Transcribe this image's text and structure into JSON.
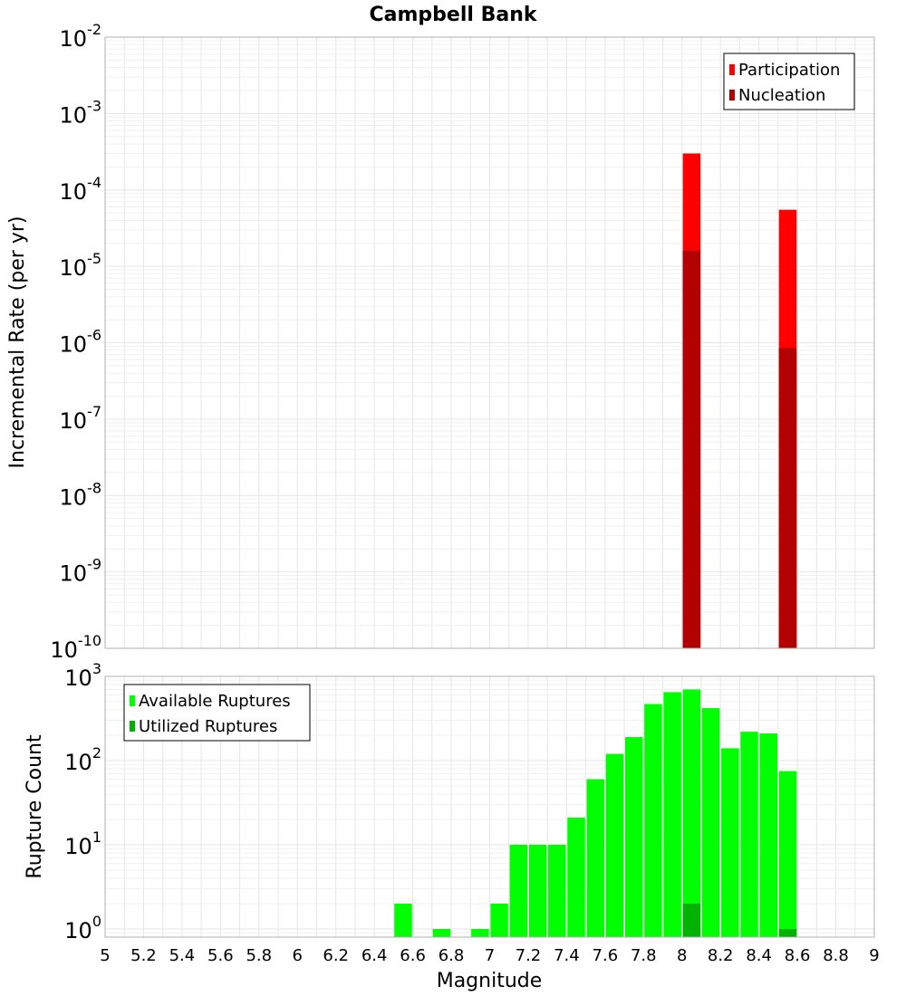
{
  "title": "Campbell Bank",
  "chart_data": [
    {
      "type": "bar",
      "panel": "rates",
      "ylabel": "Incremental Rate (per yr)",
      "yscale": "log",
      "ylim": [
        1e-10,
        0.01
      ],
      "xlim": [
        5,
        9
      ],
      "y_tick_exponents": [
        "-10",
        "-9",
        "-8",
        "-7",
        "-6",
        "-5",
        "-4",
        "-3",
        "-2"
      ],
      "legend_position": "top-right",
      "series": [
        {
          "name": "Participation",
          "color": "#ff0000",
          "points": [
            {
              "x": 8.05,
              "y": 0.0003
            },
            {
              "x": 8.55,
              "y": 5.5e-05
            }
          ]
        },
        {
          "name": "Nucleation",
          "color": "#b30000",
          "points": [
            {
              "x": 8.05,
              "y": 1.6e-05
            },
            {
              "x": 8.55,
              "y": 8.5e-07
            }
          ]
        }
      ]
    },
    {
      "type": "bar",
      "panel": "counts",
      "ylabel": "Rupture Count",
      "xlabel": "Magnitude",
      "yscale": "log",
      "ylim": [
        0.8,
        1000
      ],
      "xlim": [
        5,
        9
      ],
      "y_tick_exponents": [
        "0",
        "1",
        "2",
        "3"
      ],
      "x_ticks": [
        "5",
        "5.2",
        "5.4",
        "5.6",
        "5.8",
        "6",
        "6.2",
        "6.4",
        "6.6",
        "6.8",
        "7",
        "7.2",
        "7.4",
        "7.6",
        "7.8",
        "8",
        "8.2",
        "8.4",
        "8.6",
        "8.8",
        "9"
      ],
      "legend_position": "top-left",
      "series": [
        {
          "name": "Available Ruptures",
          "color": "#00ff00",
          "points": [
            {
              "x": 6.55,
              "y": 2
            },
            {
              "x": 6.75,
              "y": 1
            },
            {
              "x": 6.95,
              "y": 1
            },
            {
              "x": 7.05,
              "y": 2
            },
            {
              "x": 7.15,
              "y": 10
            },
            {
              "x": 7.25,
              "y": 10
            },
            {
              "x": 7.35,
              "y": 10
            },
            {
              "x": 7.45,
              "y": 21
            },
            {
              "x": 7.55,
              "y": 60
            },
            {
              "x": 7.65,
              "y": 120
            },
            {
              "x": 7.75,
              "y": 190
            },
            {
              "x": 7.85,
              "y": 470
            },
            {
              "x": 7.95,
              "y": 650
            },
            {
              "x": 8.05,
              "y": 700
            },
            {
              "x": 8.15,
              "y": 420
            },
            {
              "x": 8.25,
              "y": 140
            },
            {
              "x": 8.35,
              "y": 220
            },
            {
              "x": 8.45,
              "y": 210
            },
            {
              "x": 8.55,
              "y": 75
            }
          ]
        },
        {
          "name": "Utilized Ruptures",
          "color": "#00b300",
          "points": [
            {
              "x": 8.05,
              "y": 2
            },
            {
              "x": 8.55,
              "y": 1
            }
          ]
        }
      ]
    }
  ]
}
